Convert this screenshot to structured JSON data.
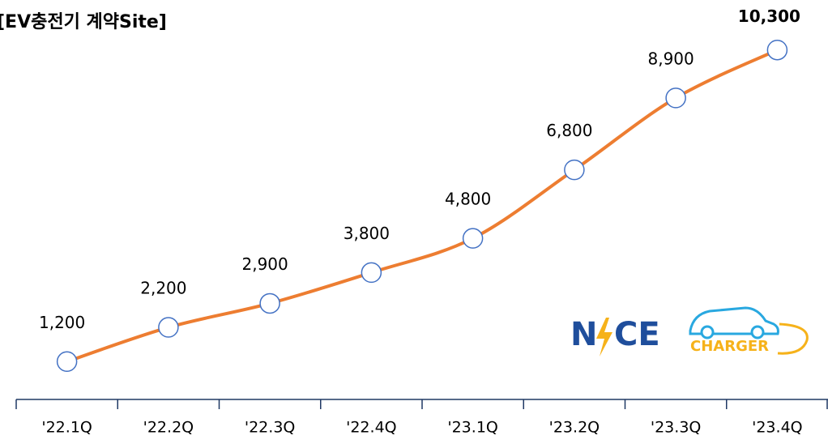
{
  "chart_data": {
    "type": "line",
    "title": "[EV충전기 계약Site]",
    "categories": [
      "'22.1Q",
      "'22.2Q",
      "'22.3Q",
      "'22.4Q",
      "'23.1Q",
      "'23.2Q",
      "'23.3Q",
      "'23.4Q"
    ],
    "series": [
      {
        "name": "EV충전기 계약Site",
        "color": "#ed7d31",
        "marker_color": "#4472c4",
        "values": [
          1200,
          2200,
          2900,
          3800,
          4800,
          6800,
          8900,
          10300
        ],
        "value_labels": [
          "1,200",
          "2,200",
          "2,900",
          "3,800",
          "4,800",
          "6,800",
          "8,900",
          "10,300"
        ]
      }
    ],
    "ylim": [
      0,
      11500
    ]
  },
  "logo": [
    "N",
    "CE",
    "CHARGER"
  ]
}
